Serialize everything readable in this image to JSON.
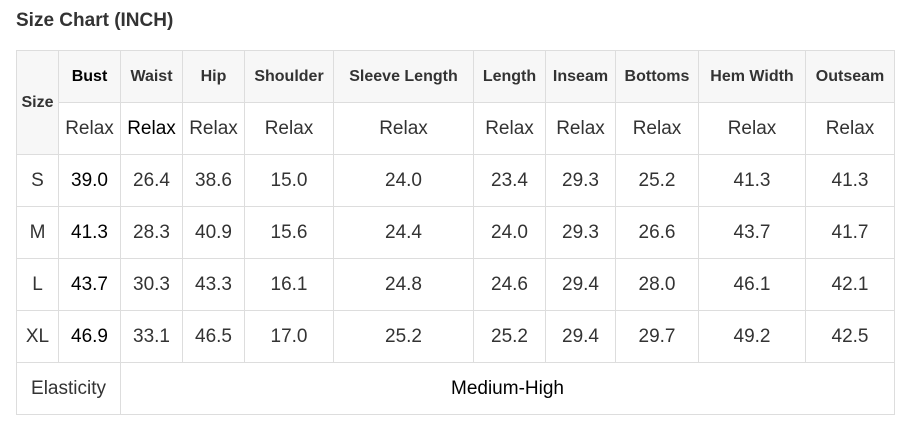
{
  "title": "Size Chart (INCH)",
  "size_header": "Size",
  "columns": [
    "Bust",
    "Waist",
    "Hip",
    "Shoulder",
    "Sleeve Length",
    "Length",
    "Inseam",
    "Bottoms",
    "Hem Width",
    "Outseam"
  ],
  "fit_row": [
    "Relax",
    "Relax",
    "Relax",
    "Relax",
    "Relax",
    "Relax",
    "Relax",
    "Relax",
    "Relax",
    "Relax"
  ],
  "rows": [
    {
      "size": "S",
      "values": [
        "39.0",
        "26.4",
        "38.6",
        "15.0",
        "24.0",
        "23.4",
        "29.3",
        "25.2",
        "41.3",
        "41.3"
      ]
    },
    {
      "size": "M",
      "values": [
        "41.3",
        "28.3",
        "40.9",
        "15.6",
        "24.4",
        "24.0",
        "29.3",
        "26.6",
        "43.7",
        "41.7"
      ]
    },
    {
      "size": "L",
      "values": [
        "43.7",
        "30.3",
        "43.3",
        "16.1",
        "24.8",
        "24.6",
        "29.4",
        "28.0",
        "46.1",
        "42.1"
      ]
    },
    {
      "size": "XL",
      "values": [
        "46.9",
        "33.1",
        "46.5",
        "17.0",
        "25.2",
        "25.2",
        "29.4",
        "29.7",
        "49.2",
        "42.5"
      ]
    }
  ],
  "elasticity": {
    "label": "Elasticity",
    "value": "Medium-High"
  }
}
